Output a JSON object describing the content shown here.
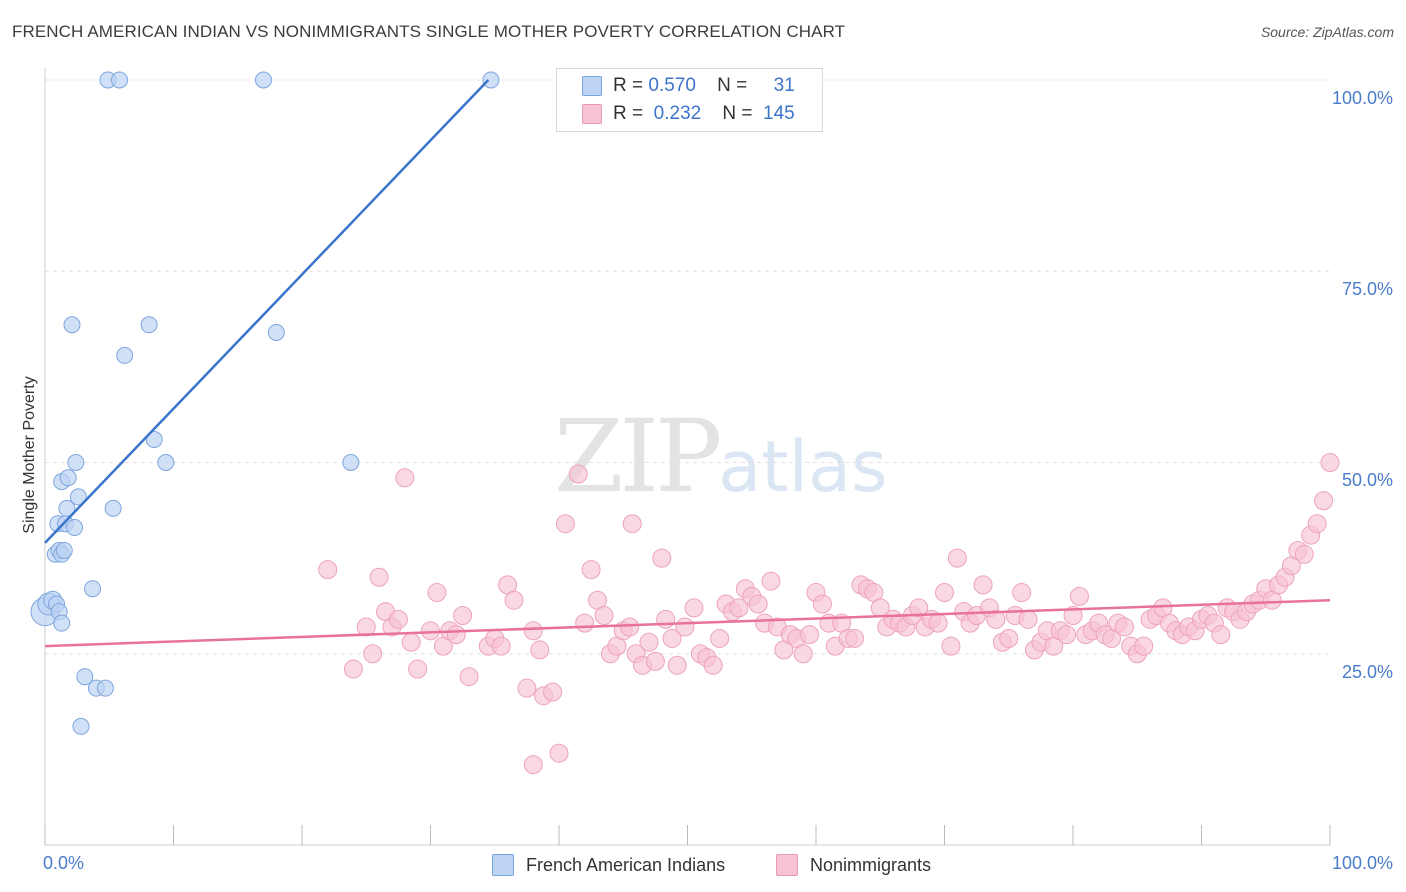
{
  "header": {
    "title": "FRENCH AMERICAN INDIAN VS NONIMMIGRANTS SINGLE MOTHER POVERTY CORRELATION CHART",
    "source": "Source: ZipAtlas.com"
  },
  "watermark": {
    "zip": "ZIP",
    "atlas": "atlas"
  },
  "legend": {
    "rows": [
      {
        "r_label": "R =",
        "r_value": "0.570",
        "n_label": "N =",
        "n_value": "31"
      },
      {
        "r_label": "R =",
        "r_value": "0.232",
        "n_label": "N =",
        "n_value": "145"
      }
    ]
  },
  "chart_data": {
    "type": "scatter",
    "title": "FRENCH AMERICAN INDIAN VS NONIMMIGRANTS SINGLE MOTHER POVERTY CORRELATION CHART",
    "xlabel": "",
    "ylabel": "Single Mother Poverty",
    "xlim": [
      0,
      100
    ],
    "ylim": [
      0,
      102
    ],
    "x_tick_labels": [
      "0.0%",
      "100.0%"
    ],
    "y_tick_labels": [
      "25.0%",
      "50.0%",
      "75.0%",
      "100.0%"
    ],
    "y_ticks": [
      25,
      50,
      75,
      100
    ],
    "grid": true,
    "legend_position": "bottom",
    "colors": {
      "blue": "#5b8fd6",
      "blue_fill": "#bcd3f3",
      "pink": "#e8729a",
      "pink_fill": "#f7c3d3",
      "axis_text": "#4a7cc9"
    },
    "series": [
      {
        "name": "French American Indians",
        "r": 0.57,
        "n": 31,
        "trend": {
          "x": [
            0,
            34.5
          ],
          "y": [
            39.5,
            100
          ]
        },
        "points": [
          {
            "x": 0.0,
            "y": 30.5,
            "size": 14
          },
          {
            "x": 0.3,
            "y": 31.5,
            "size": 11
          },
          {
            "x": 0.6,
            "y": 32.0,
            "size": 9
          },
          {
            "x": 0.9,
            "y": 31.5,
            "size": 8
          },
          {
            "x": 1.1,
            "y": 30.5,
            "size": 8
          },
          {
            "x": 1.3,
            "y": 29.0,
            "size": 8
          },
          {
            "x": 0.8,
            "y": 38.0,
            "size": 8
          },
          {
            "x": 1.1,
            "y": 38.5,
            "size": 8
          },
          {
            "x": 1.3,
            "y": 38.0,
            "size": 8
          },
          {
            "x": 1.5,
            "y": 38.5,
            "size": 8
          },
          {
            "x": 1.0,
            "y": 42.0,
            "size": 8
          },
          {
            "x": 1.6,
            "y": 42.0,
            "size": 8
          },
          {
            "x": 2.3,
            "y": 41.5,
            "size": 8
          },
          {
            "x": 1.7,
            "y": 44.0,
            "size": 8
          },
          {
            "x": 2.6,
            "y": 45.5,
            "size": 8
          },
          {
            "x": 1.3,
            "y": 47.5,
            "size": 8
          },
          {
            "x": 1.8,
            "y": 48.0,
            "size": 8
          },
          {
            "x": 2.4,
            "y": 50.0,
            "size": 8
          },
          {
            "x": 5.3,
            "y": 44.0,
            "size": 8
          },
          {
            "x": 3.7,
            "y": 33.5,
            "size": 8
          },
          {
            "x": 2.1,
            "y": 68.0,
            "size": 8
          },
          {
            "x": 6.2,
            "y": 64.0,
            "size": 8
          },
          {
            "x": 8.1,
            "y": 68.0,
            "size": 8
          },
          {
            "x": 8.5,
            "y": 53.0,
            "size": 8
          },
          {
            "x": 9.4,
            "y": 50.0,
            "size": 8
          },
          {
            "x": 18.0,
            "y": 67.0,
            "size": 8
          },
          {
            "x": 23.8,
            "y": 50.0,
            "size": 8
          },
          {
            "x": 3.1,
            "y": 22.0,
            "size": 8
          },
          {
            "x": 4.0,
            "y": 20.5,
            "size": 8
          },
          {
            "x": 4.7,
            "y": 20.5,
            "size": 8
          },
          {
            "x": 2.8,
            "y": 15.5,
            "size": 8
          },
          {
            "x": 4.9,
            "y": 100,
            "size": 8
          },
          {
            "x": 5.8,
            "y": 100,
            "size": 8
          },
          {
            "x": 17.0,
            "y": 100,
            "size": 8
          },
          {
            "x": 34.7,
            "y": 100,
            "size": 8
          }
        ]
      },
      {
        "name": "Nonimmigrants",
        "r": 0.232,
        "n": 145,
        "trend": {
          "x": [
            0,
            100
          ],
          "y": [
            26,
            32
          ]
        },
        "points": [
          {
            "x": 22.0,
            "y": 36.0
          },
          {
            "x": 24.0,
            "y": 23.0
          },
          {
            "x": 25.0,
            "y": 28.5
          },
          {
            "x": 25.5,
            "y": 25.0
          },
          {
            "x": 26.0,
            "y": 35.0
          },
          {
            "x": 26.5,
            "y": 30.5
          },
          {
            "x": 27.0,
            "y": 28.5
          },
          {
            "x": 27.5,
            "y": 29.5
          },
          {
            "x": 28.0,
            "y": 48.0
          },
          {
            "x": 28.5,
            "y": 26.5
          },
          {
            "x": 29.0,
            "y": 23.0
          },
          {
            "x": 30.0,
            "y": 28.0
          },
          {
            "x": 30.5,
            "y": 33.0
          },
          {
            "x": 31.0,
            "y": 26.0
          },
          {
            "x": 31.5,
            "y": 28.0
          },
          {
            "x": 32.0,
            "y": 27.5
          },
          {
            "x": 32.5,
            "y": 30.0
          },
          {
            "x": 33.0,
            "y": 22.0
          },
          {
            "x": 34.5,
            "y": 26.0
          },
          {
            "x": 35.0,
            "y": 27.0
          },
          {
            "x": 35.5,
            "y": 26.0
          },
          {
            "x": 36.0,
            "y": 34.0
          },
          {
            "x": 36.5,
            "y": 32.0
          },
          {
            "x": 37.5,
            "y": 20.5
          },
          {
            "x": 38.0,
            "y": 28.0
          },
          {
            "x": 38.5,
            "y": 25.5
          },
          {
            "x": 38.8,
            "y": 19.5
          },
          {
            "x": 39.5,
            "y": 20.0
          },
          {
            "x": 40.0,
            "y": 12.0
          },
          {
            "x": 38.0,
            "y": 10.5
          },
          {
            "x": 40.5,
            "y": 42.0
          },
          {
            "x": 41.5,
            "y": 48.5
          },
          {
            "x": 42.0,
            "y": 29.0
          },
          {
            "x": 42.5,
            "y": 36.0
          },
          {
            "x": 43.0,
            "y": 32.0
          },
          {
            "x": 43.5,
            "y": 30.0
          },
          {
            "x": 44.0,
            "y": 25.0
          },
          {
            "x": 44.5,
            "y": 26.0
          },
          {
            "x": 45.0,
            "y": 28.0
          },
          {
            "x": 45.5,
            "y": 28.5
          },
          {
            "x": 45.7,
            "y": 42.0
          },
          {
            "x": 46.0,
            "y": 25.0
          },
          {
            "x": 46.5,
            "y": 23.5
          },
          {
            "x": 47.0,
            "y": 26.5
          },
          {
            "x": 47.5,
            "y": 24.0
          },
          {
            "x": 48.0,
            "y": 37.5
          },
          {
            "x": 48.3,
            "y": 29.5
          },
          {
            "x": 48.8,
            "y": 27.0
          },
          {
            "x": 49.2,
            "y": 23.5
          },
          {
            "x": 49.8,
            "y": 28.5
          },
          {
            "x": 50.5,
            "y": 31.0
          },
          {
            "x": 51.0,
            "y": 25.0
          },
          {
            "x": 51.5,
            "y": 24.5
          },
          {
            "x": 52.0,
            "y": 23.5
          },
          {
            "x": 52.5,
            "y": 27.0
          },
          {
            "x": 53.0,
            "y": 31.5
          },
          {
            "x": 53.5,
            "y": 30.5
          },
          {
            "x": 54.0,
            "y": 31.0
          },
          {
            "x": 54.5,
            "y": 33.5
          },
          {
            "x": 55.0,
            "y": 32.5
          },
          {
            "x": 55.5,
            "y": 31.5
          },
          {
            "x": 56.0,
            "y": 29.0
          },
          {
            "x": 56.5,
            "y": 34.5
          },
          {
            "x": 57.0,
            "y": 28.5
          },
          {
            "x": 57.5,
            "y": 25.5
          },
          {
            "x": 58.0,
            "y": 27.5
          },
          {
            "x": 58.5,
            "y": 27.0
          },
          {
            "x": 59.0,
            "y": 25.0
          },
          {
            "x": 59.5,
            "y": 27.5
          },
          {
            "x": 60.0,
            "y": 33.0
          },
          {
            "x": 60.5,
            "y": 31.5
          },
          {
            "x": 61.0,
            "y": 29.0
          },
          {
            "x": 61.5,
            "y": 26.0
          },
          {
            "x": 62.0,
            "y": 29.0
          },
          {
            "x": 62.5,
            "y": 27.0
          },
          {
            "x": 63.0,
            "y": 27.0
          },
          {
            "x": 63.5,
            "y": 34.0
          },
          {
            "x": 64.0,
            "y": 33.5
          },
          {
            "x": 64.5,
            "y": 33.0
          },
          {
            "x": 65.0,
            "y": 31.0
          },
          {
            "x": 65.5,
            "y": 28.5
          },
          {
            "x": 66.0,
            "y": 29.5
          },
          {
            "x": 66.5,
            "y": 29.0
          },
          {
            "x": 67.0,
            "y": 28.5
          },
          {
            "x": 67.5,
            "y": 30.0
          },
          {
            "x": 68.0,
            "y": 31.0
          },
          {
            "x": 68.5,
            "y": 28.5
          },
          {
            "x": 69.0,
            "y": 29.5
          },
          {
            "x": 69.5,
            "y": 29.0
          },
          {
            "x": 70.0,
            "y": 33.0
          },
          {
            "x": 70.5,
            "y": 26.0
          },
          {
            "x": 71.0,
            "y": 37.5
          },
          {
            "x": 71.5,
            "y": 30.5
          },
          {
            "x": 72.0,
            "y": 29.0
          },
          {
            "x": 72.5,
            "y": 30.0
          },
          {
            "x": 73.0,
            "y": 34.0
          },
          {
            "x": 73.5,
            "y": 31.0
          },
          {
            "x": 74.0,
            "y": 29.5
          },
          {
            "x": 74.5,
            "y": 26.5
          },
          {
            "x": 75.0,
            "y": 27.0
          },
          {
            "x": 75.5,
            "y": 30.0
          },
          {
            "x": 76.0,
            "y": 33.0
          },
          {
            "x": 76.5,
            "y": 29.5
          },
          {
            "x": 77.0,
            "y": 25.5
          },
          {
            "x": 77.5,
            "y": 26.5
          },
          {
            "x": 78.0,
            "y": 28.0
          },
          {
            "x": 78.5,
            "y": 26.0
          },
          {
            "x": 79.0,
            "y": 28.0
          },
          {
            "x": 79.5,
            "y": 27.5
          },
          {
            "x": 80.0,
            "y": 30.0
          },
          {
            "x": 80.5,
            "y": 32.5
          },
          {
            "x": 81.0,
            "y": 27.5
          },
          {
            "x": 81.5,
            "y": 28.0
          },
          {
            "x": 82.0,
            "y": 29.0
          },
          {
            "x": 82.5,
            "y": 27.5
          },
          {
            "x": 83.0,
            "y": 27.0
          },
          {
            "x": 83.5,
            "y": 29.0
          },
          {
            "x": 84.0,
            "y": 28.5
          },
          {
            "x": 84.5,
            "y": 26.0
          },
          {
            "x": 85.0,
            "y": 25.0
          },
          {
            "x": 85.5,
            "y": 26.0
          },
          {
            "x": 86.0,
            "y": 29.5
          },
          {
            "x": 86.5,
            "y": 30.0
          },
          {
            "x": 87.0,
            "y": 31.0
          },
          {
            "x": 87.5,
            "y": 29.0
          },
          {
            "x": 88.0,
            "y": 28.0
          },
          {
            "x": 88.5,
            "y": 27.5
          },
          {
            "x": 89.0,
            "y": 28.5
          },
          {
            "x": 89.5,
            "y": 28.0
          },
          {
            "x": 90.0,
            "y": 29.5
          },
          {
            "x": 90.5,
            "y": 30.0
          },
          {
            "x": 91.0,
            "y": 29.0
          },
          {
            "x": 91.5,
            "y": 27.5
          },
          {
            "x": 92.0,
            "y": 31.0
          },
          {
            "x": 92.5,
            "y": 30.5
          },
          {
            "x": 93.0,
            "y": 29.5
          },
          {
            "x": 93.5,
            "y": 30.5
          },
          {
            "x": 94.0,
            "y": 31.5
          },
          {
            "x": 94.5,
            "y": 32.0
          },
          {
            "x": 95.0,
            "y": 33.5
          },
          {
            "x": 95.5,
            "y": 32.0
          },
          {
            "x": 96.0,
            "y": 34.0
          },
          {
            "x": 96.5,
            "y": 35.0
          },
          {
            "x": 97.0,
            "y": 36.5
          },
          {
            "x": 97.5,
            "y": 38.5
          },
          {
            "x": 98.0,
            "y": 38.0
          },
          {
            "x": 98.5,
            "y": 40.5
          },
          {
            "x": 99.0,
            "y": 42.0
          },
          {
            "x": 99.5,
            "y": 45.0
          },
          {
            "x": 100.0,
            "y": 50.0
          }
        ]
      }
    ]
  },
  "bottom_legend": {
    "items": [
      {
        "label": "French American Indians"
      },
      {
        "label": "Nonimmigrants"
      }
    ]
  }
}
